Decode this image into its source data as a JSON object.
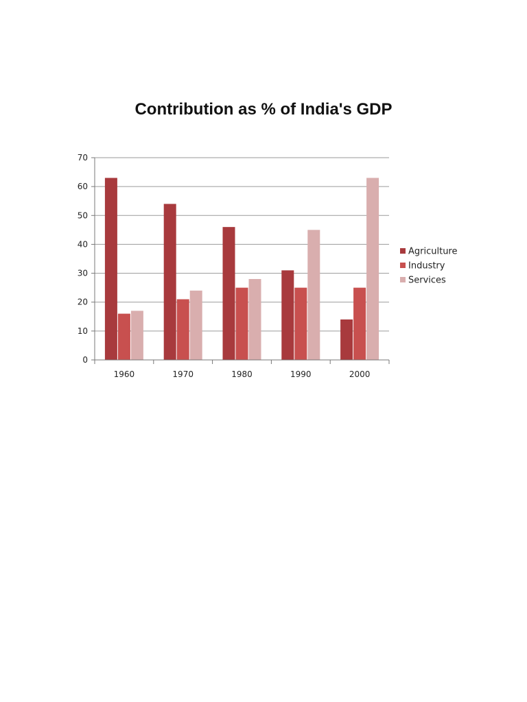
{
  "chart_data": {
    "type": "bar",
    "title": "Contribution as % of India's GDP",
    "xlabel": "",
    "ylabel": "",
    "categories": [
      "1960",
      "1970",
      "1980",
      "1990",
      "2000"
    ],
    "ylim": [
      0,
      70
    ],
    "yticks": [
      0,
      10,
      20,
      30,
      40,
      50,
      60,
      70
    ],
    "grid": true,
    "legend_position": "right",
    "series": [
      {
        "name": "Agriculture",
        "color": "#a83a3d",
        "values": [
          63,
          54,
          46,
          31,
          14
        ]
      },
      {
        "name": "Industry",
        "color": "#c8504f",
        "values": [
          16,
          21,
          25,
          25,
          25
        ]
      },
      {
        "name": "Services",
        "color": "#d9aeae",
        "values": [
          17,
          24,
          28,
          45,
          63
        ]
      }
    ]
  }
}
